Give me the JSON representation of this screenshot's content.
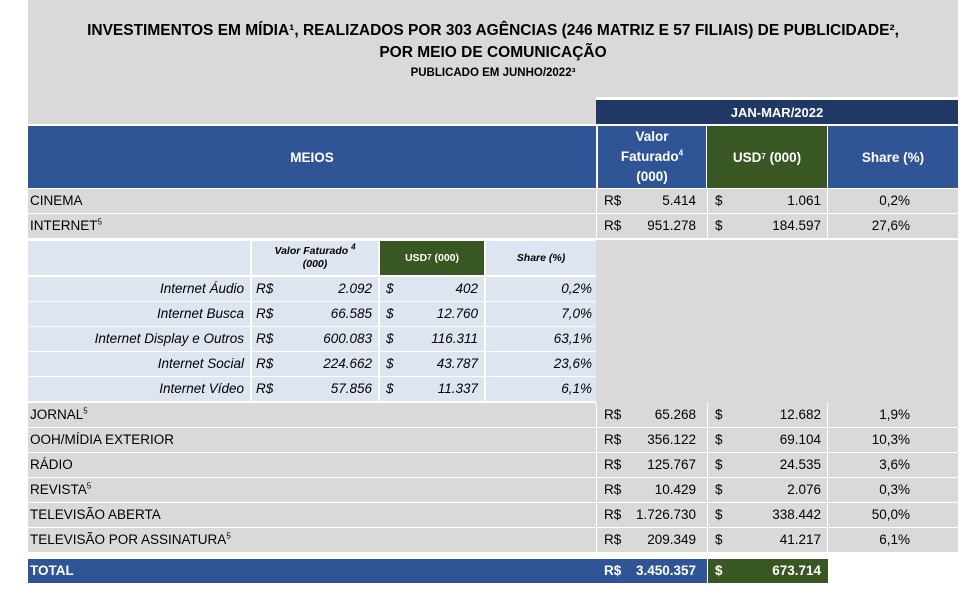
{
  "title": {
    "line1": "INVESTIMENTOS EM MÍDIA¹, REALIZADOS POR 303 AGÊNCIAS (246 MATRIZ E 57 FILIAIS) DE PUBLICIDADE²,",
    "line2": "POR MEIO DE COMUNICAÇÃO",
    "line3": "PUBLICADO EM JUNHO/2022³"
  },
  "period": "JAN-MAR/2022",
  "headers": {
    "meios": "MEIOS",
    "valor_a": "Valor",
    "valor_b": "Faturado",
    "valor_sup": "4",
    "valor_c": "(000)",
    "usd": "USD",
    "usd_sup": "7",
    "usd_tail": " (000)",
    "share": "Share (%)"
  },
  "currency": {
    "brl": "R$",
    "usd": "$"
  },
  "rows_top": [
    {
      "name": "CINEMA",
      "sup": "",
      "valor": "5.414",
      "usd": "1.061",
      "share": "0,2%"
    },
    {
      "name": "INTERNET",
      "sup": "5",
      "valor": "951.278",
      "usd": "184.597",
      "share": "27,6%"
    }
  ],
  "internet_sub": {
    "headers": {
      "valor_a": "Valor Faturado",
      "valor_sup": "4",
      "valor_b": "(000)",
      "usd": "USD",
      "usd_sup": "7",
      "usd_tail": " (000)",
      "share": "Share (%)"
    },
    "rows": [
      {
        "name": "Internet Áudio",
        "valor": "2.092",
        "usd": "402",
        "share": "0,2%"
      },
      {
        "name": "Internet Busca",
        "valor": "66.585",
        "usd": "12.760",
        "share": "7,0%"
      },
      {
        "name": "Internet Display e Outros",
        "valor": "600.083",
        "usd": "116.311",
        "share": "63,1%"
      },
      {
        "name": "Internet Social",
        "valor": "224.662",
        "usd": "43.787",
        "share": "23,6%"
      },
      {
        "name": "Internet Vídeo",
        "valor": "57.856",
        "usd": "11.337",
        "share": "6,1%"
      }
    ]
  },
  "rows_bottom": [
    {
      "name": "JORNAL",
      "sup": "5",
      "valor": "65.268",
      "usd": "12.682",
      "share": "1,9%"
    },
    {
      "name": "OOH/MÍDIA EXTERIOR",
      "sup": "",
      "valor": "356.122",
      "usd": "69.104",
      "share": "10,3%"
    },
    {
      "name": "RÁDIO",
      "sup": "",
      "valor": "125.767",
      "usd": "24.535",
      "share": "3,6%"
    },
    {
      "name": "REVISTA",
      "sup": "5",
      "valor": "10.429",
      "usd": "2.076",
      "share": "0,3%"
    },
    {
      "name": "TELEVISÃO ABERTA",
      "sup": "",
      "valor": "1.726.730",
      "usd": "338.442",
      "share": "50,0%"
    },
    {
      "name": "TELEVISÃO POR ASSINATURA",
      "sup": "5",
      "valor": "209.349",
      "usd": "41.217",
      "share": "6,1%"
    }
  ],
  "total": {
    "label": "TOTAL",
    "valor": "3.450.357",
    "usd": "673.714"
  },
  "colors": {
    "navy": "#1f3864",
    "blue": "#2f5597",
    "green": "#385723",
    "grey": "#d9d9d9",
    "sub": "#dde5f0"
  }
}
